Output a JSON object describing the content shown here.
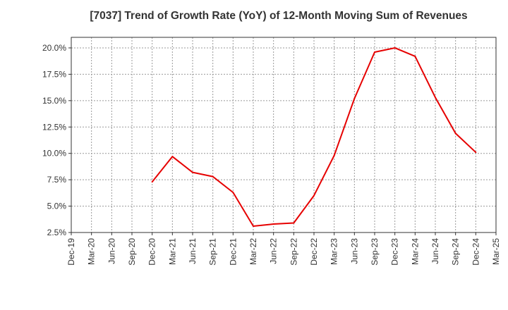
{
  "chart_data": {
    "type": "line",
    "title": "[7037]  Trend of Growth Rate (YoY) of 12-Month Moving Sum of Revenues",
    "xlabel": "",
    "ylabel": "",
    "x_ticks": [
      "Dec-19",
      "Mar-20",
      "Jun-20",
      "Sep-20",
      "Dec-20",
      "Mar-21",
      "Jun-21",
      "Sep-21",
      "Dec-21",
      "Mar-22",
      "Jun-22",
      "Sep-22",
      "Dec-22",
      "Mar-23",
      "Jun-23",
      "Sep-23",
      "Dec-23",
      "Mar-24",
      "Jun-24",
      "Sep-24",
      "Dec-24",
      "Mar-25"
    ],
    "y_ticks": [
      "2.5%",
      "5.0%",
      "7.5%",
      "10.0%",
      "12.5%",
      "15.0%",
      "17.5%",
      "20.0%"
    ],
    "y_tick_values": [
      2.5,
      5.0,
      7.5,
      10.0,
      12.5,
      15.0,
      17.5,
      20.0
    ],
    "ylim": [
      2.5,
      21.0
    ],
    "grid": true,
    "series": [
      {
        "color": "#e60000",
        "x": [
          "Dec-20",
          "Mar-21",
          "Jun-21",
          "Sep-21",
          "Dec-21",
          "Mar-22",
          "Jun-22",
          "Sep-22",
          "Dec-22",
          "Mar-23",
          "Jun-23",
          "Sep-23",
          "Dec-23",
          "Mar-24",
          "Jun-24",
          "Sep-24",
          "Dec-24"
        ],
        "values": [
          7.3,
          9.7,
          8.2,
          7.8,
          6.3,
          3.1,
          3.3,
          3.4,
          6.0,
          9.8,
          15.2,
          19.6,
          20.0,
          19.2,
          15.3,
          11.9,
          10.1
        ]
      }
    ]
  }
}
